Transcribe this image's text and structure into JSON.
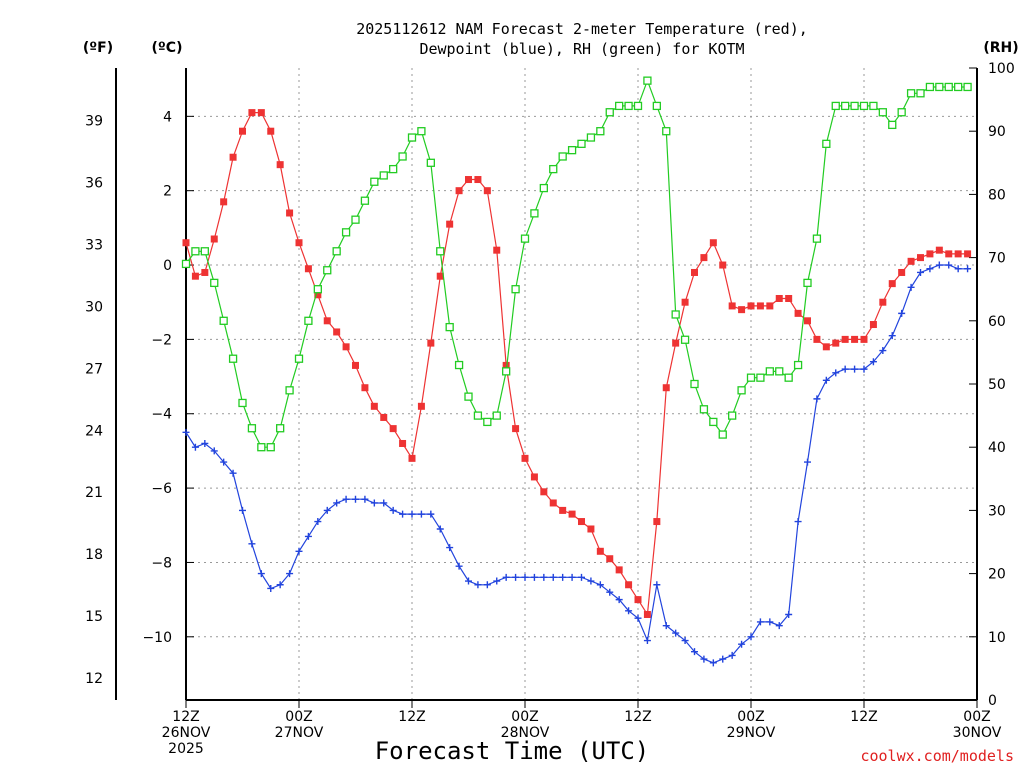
{
  "chart_data": {
    "type": "line",
    "title_line1": "2025112612 NAM Forecast 2-meter Temperature (red),",
    "title_line2": "Dewpoint (blue), RH (green) for KOTM",
    "xlabel": "Forecast Time (UTC)",
    "credit": "coolwx.com/models",
    "left_outer_unit": "(ºF)",
    "left_inner_unit": "(ºC)",
    "right_unit": "(RH)",
    "x_hours_range": [
      0,
      84
    ],
    "celsius_range": [
      -11.7,
      5.3
    ],
    "rh_range": [
      0,
      100
    ],
    "x_ticks": [
      {
        "hour": 0,
        "lines": [
          "12Z",
          "26NOV",
          "2025"
        ]
      },
      {
        "hour": 12,
        "lines": [
          "00Z",
          "27NOV"
        ]
      },
      {
        "hour": 24,
        "lines": [
          "12Z"
        ]
      },
      {
        "hour": 36,
        "lines": [
          "00Z",
          "28NOV"
        ]
      },
      {
        "hour": 48,
        "lines": [
          "12Z"
        ]
      },
      {
        "hour": 60,
        "lines": [
          "00Z",
          "29NOV"
        ]
      },
      {
        "hour": 72,
        "lines": [
          "12Z"
        ]
      },
      {
        "hour": 84,
        "lines": [
          "00Z",
          "30NOV"
        ]
      }
    ],
    "celsius_ticks": [
      "4",
      "2",
      "0",
      "−2",
      "−4",
      "−6",
      "−8",
      "−10"
    ],
    "celsius_tick_values": [
      4,
      2,
      0,
      -2,
      -4,
      -6,
      -8,
      -10
    ],
    "fahrenheit_ticks": [
      "39",
      "36",
      "33",
      "30",
      "27",
      "24",
      "21",
      "18",
      "15",
      "12"
    ],
    "fahrenheit_tick_values": [
      39,
      36,
      33,
      30,
      27,
      24,
      21,
      18,
      15,
      12
    ],
    "rh_ticks": [
      "100",
      "90",
      "80",
      "70",
      "60",
      "50",
      "40",
      "30",
      "20",
      "10",
      "0"
    ],
    "rh_tick_values": [
      100,
      90,
      80,
      70,
      60,
      50,
      40,
      30,
      20,
      10,
      0
    ],
    "series": [
      {
        "name": "Temperature (°C)",
        "color": "#ee3333",
        "marker": "filled-square",
        "axis": "celsius",
        "values": [
          0.6,
          -0.3,
          -0.2,
          0.7,
          1.7,
          2.9,
          3.6,
          4.1,
          4.1,
          3.6,
          2.7,
          1.4,
          0.6,
          -0.1,
          -0.8,
          -1.5,
          -1.8,
          -2.2,
          -2.7,
          -3.3,
          -3.8,
          -4.1,
          -4.4,
          -4.8,
          -5.2,
          -3.8,
          -2.1,
          -0.3,
          1.1,
          2.0,
          2.3,
          2.3,
          2.0,
          0.4,
          -2.7,
          -4.4,
          -5.2,
          -5.7,
          -6.1,
          -6.4,
          -6.6,
          -6.7,
          -6.9,
          -7.1,
          -7.7,
          -7.9,
          -8.2,
          -8.6,
          -9.0,
          -9.4,
          -6.9,
          -3.3,
          -2.1,
          -1.0,
          -0.2,
          0.2,
          0.6,
          0.0,
          -1.1,
          -1.2,
          -1.1,
          -1.1,
          -1.1,
          -0.9,
          -0.9,
          -1.3,
          -1.5,
          -2.0,
          -2.2,
          -2.1,
          -2.0,
          -2.0,
          -2.0,
          -1.6,
          -1.0,
          -0.5,
          -0.2,
          0.1,
          0.2,
          0.3,
          0.4,
          0.3,
          0.3,
          0.3
        ]
      },
      {
        "name": "Dewpoint (°C)",
        "color": "#2244dd",
        "marker": "plus",
        "axis": "celsius",
        "values": [
          -4.5,
          -4.9,
          -4.8,
          -5.0,
          -5.3,
          -5.6,
          -6.6,
          -7.5,
          -8.3,
          -8.7,
          -8.6,
          -8.3,
          -7.7,
          -7.3,
          -6.9,
          -6.6,
          -6.4,
          -6.3,
          -6.3,
          -6.3,
          -6.4,
          -6.4,
          -6.6,
          -6.7,
          -6.7,
          -6.7,
          -6.7,
          -7.1,
          -7.6,
          -8.1,
          -8.5,
          -8.6,
          -8.6,
          -8.5,
          -8.4,
          -8.4,
          -8.4,
          -8.4,
          -8.4,
          -8.4,
          -8.4,
          -8.4,
          -8.4,
          -8.5,
          -8.6,
          -8.8,
          -9.0,
          -9.3,
          -9.5,
          -10.1,
          -8.6,
          -9.7,
          -9.9,
          -10.1,
          -10.4,
          -10.6,
          -10.7,
          -10.6,
          -10.5,
          -10.2,
          -10.0,
          -9.6,
          -9.6,
          -9.7,
          -9.4,
          -6.9,
          -5.3,
          -3.6,
          -3.1,
          -2.9,
          -2.8,
          -2.8,
          -2.8,
          -2.6,
          -2.3,
          -1.9,
          -1.3,
          -0.6,
          -0.2,
          -0.1,
          0.0,
          0.0,
          -0.1,
          -0.1
        ]
      },
      {
        "name": "RH (%)",
        "color": "#22cc22",
        "marker": "open-square",
        "axis": "rh",
        "values": [
          69,
          71,
          71,
          66,
          60,
          54,
          47,
          43,
          40,
          40,
          43,
          49,
          54,
          60,
          65,
          68,
          71,
          74,
          76,
          79,
          82,
          83,
          84,
          86,
          89,
          90,
          85,
          71,
          59,
          53,
          48,
          45,
          44,
          45,
          52,
          65,
          73,
          77,
          81,
          84,
          86,
          87,
          88,
          89,
          90,
          93,
          94,
          94,
          94,
          98,
          94,
          90,
          61,
          57,
          50,
          46,
          44,
          42,
          45,
          49,
          51,
          51,
          52,
          52,
          51,
          53,
          66,
          73,
          88,
          94,
          94,
          94,
          94,
          94,
          93,
          91,
          93,
          96,
          96,
          97,
          97,
          97,
          97,
          97
        ]
      }
    ]
  }
}
